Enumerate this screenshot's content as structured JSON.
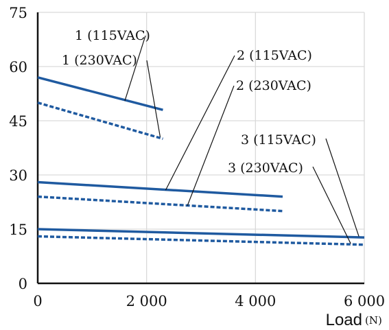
{
  "chart_data": {
    "type": "line",
    "xlabel": "Load",
    "xunit": "(N)",
    "ylabel": "",
    "xlim": [
      0,
      6000
    ],
    "ylim": [
      0,
      75
    ],
    "xticks": [
      {
        "value": 0,
        "label": "0"
      },
      {
        "value": 2000,
        "label": "2 000"
      },
      {
        "value": 4000,
        "label": "4 000"
      },
      {
        "value": 6000,
        "label": "6 000"
      }
    ],
    "yticks": [
      {
        "value": 0,
        "label": "0"
      },
      {
        "value": 15,
        "label": "15"
      },
      {
        "value": 30,
        "label": "30"
      },
      {
        "value": 45,
        "label": "45"
      },
      {
        "value": 60,
        "label": "60"
      },
      {
        "value": 75,
        "label": "75"
      }
    ],
    "grid": true,
    "line_color": "#1f5aa0",
    "series": [
      {
        "name": "1 (115VAC)",
        "style": "solid",
        "x": [
          0,
          2300
        ],
        "y": [
          57,
          48
        ],
        "label_anchor": [
          1600,
          50.5
        ]
      },
      {
        "name": "1 (230VAC)",
        "style": "dashed",
        "x": [
          0,
          2300
        ],
        "y": [
          50,
          40
        ],
        "label_anchor": [
          2250,
          40.5
        ]
      },
      {
        "name": "2 (115VAC)",
        "style": "solid",
        "x": [
          0,
          4500
        ],
        "y": [
          28,
          24
        ],
        "label_anchor": [
          2350,
          25.8
        ]
      },
      {
        "name": "2 (230VAC)",
        "style": "dashed",
        "x": [
          0,
          4500
        ],
        "y": [
          24,
          20
        ],
        "label_anchor": [
          2750,
          21.5
        ]
      },
      {
        "name": "3 (115VAC)",
        "style": "solid",
        "x": [
          0,
          6000
        ],
        "y": [
          15,
          12.7
        ],
        "label_anchor": [
          5900,
          13
        ]
      },
      {
        "name": "3 (230VAC)",
        "style": "dashed",
        "x": [
          0,
          6000
        ],
        "y": [
          13,
          10.7
        ],
        "label_anchor": [
          5750,
          11
        ]
      }
    ]
  }
}
